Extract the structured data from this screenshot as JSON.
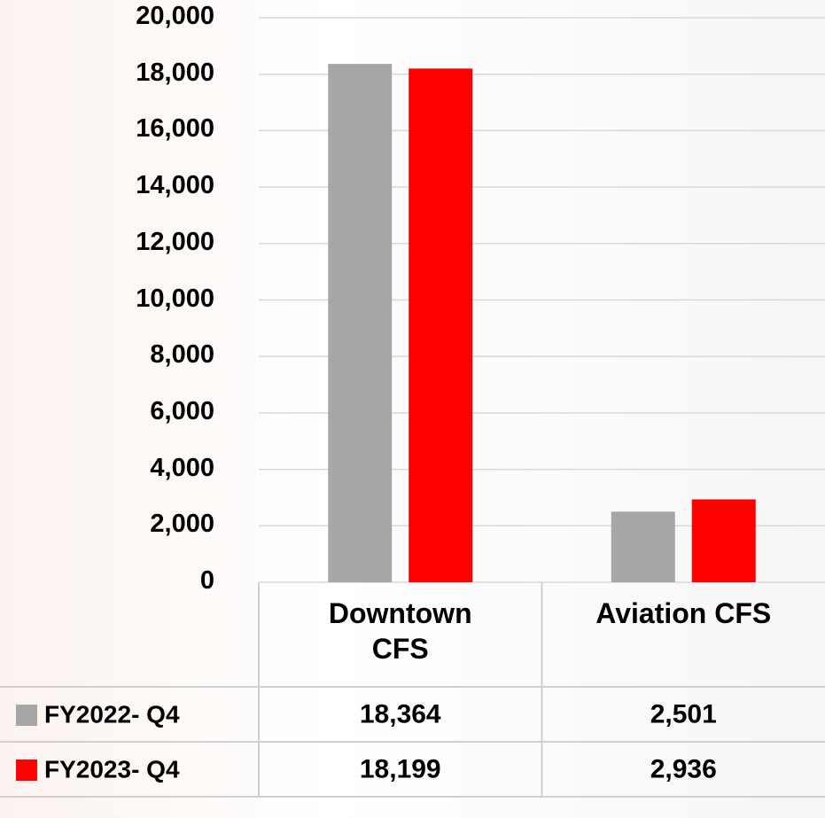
{
  "chart_data": {
    "type": "bar",
    "categories": [
      "Downtown CFS",
      "Aviation CFS"
    ],
    "series": [
      {
        "name": "FY2022- Q4",
        "color": "#a6a6a6",
        "values": [
          18364,
          2501
        ],
        "value_labels": [
          "18,364",
          "2,501"
        ]
      },
      {
        "name": "FY2023- Q4",
        "color": "#ff0000",
        "values": [
          18199,
          2936
        ],
        "value_labels": [
          "18,199",
          "2,936"
        ]
      }
    ],
    "ylim": [
      0,
      20000
    ],
    "yticks": [
      0,
      {
        "value": 2000,
        "label": "2,000"
      },
      {
        "value": 4000,
        "label": "4,000"
      },
      {
        "value": 6000,
        "label": "6,000"
      },
      {
        "value": 8000,
        "label": "8,000"
      },
      {
        "value": 10000,
        "label": "10,000"
      },
      {
        "value": 12000,
        "label": "12,000"
      },
      {
        "value": 14000,
        "label": "14,000"
      },
      {
        "value": 16000,
        "label": "16,000"
      },
      {
        "value": 18000,
        "label": "18,000"
      },
      {
        "value": 20000,
        "label": "20,000"
      }
    ],
    "grid": true
  }
}
